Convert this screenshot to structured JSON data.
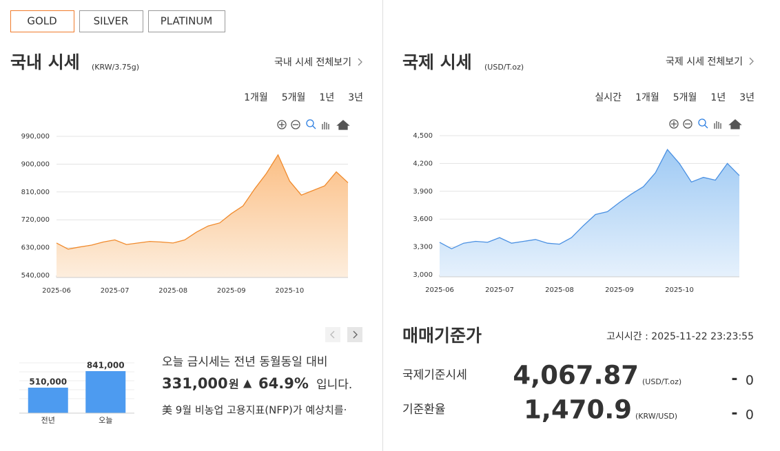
{
  "tabs": [
    "GOLD",
    "SILVER",
    "PLATINUM"
  ],
  "active_tab": 0,
  "domestic": {
    "title": "국내 시세",
    "unit": "(KRW/3.75g)",
    "link": "국내 시세 전체보기",
    "periods": [
      "1개월",
      "5개월",
      "1년",
      "3년"
    ],
    "active_period": 1
  },
  "international": {
    "title": "국제 시세",
    "unit": "(USD/T.oz)",
    "link": "국제 시세 전체보기",
    "periods": [
      "실시간",
      "1개월",
      "5개월",
      "1년",
      "3년"
    ],
    "active_period": 2
  },
  "chart_data": [
    {
      "type": "area",
      "color": "#f08a2c",
      "values": [
        645000,
        625000,
        632000,
        638000,
        648000,
        655000,
        640000,
        645000,
        650000,
        648000,
        645000,
        655000,
        680000,
        700000,
        710000,
        740000,
        765000,
        820000,
        870000,
        930000,
        845000,
        800000,
        815000,
        830000,
        875000,
        840000
      ],
      "xlim": [
        0,
        25
      ],
      "xticks": [
        {
          "value": 0,
          "label": "2025-06"
        },
        {
          "value": 5,
          "label": "2025-07"
        },
        {
          "value": 10,
          "label": "2025-08"
        },
        {
          "value": 15,
          "label": "2025-09"
        },
        {
          "value": 20,
          "label": "2025-10"
        }
      ],
      "ylim": [
        540000,
        990000
      ],
      "yticks": [
        {
          "value": 540000,
          "label": "540,000"
        },
        {
          "value": 630000,
          "label": "630,000"
        },
        {
          "value": 720000,
          "label": "720,000"
        },
        {
          "value": 810000,
          "label": "810,000"
        },
        {
          "value": 900000,
          "label": "900,000"
        },
        {
          "value": 990000,
          "label": "990,000"
        }
      ],
      "grid": true
    },
    {
      "type": "area",
      "color": "#4a90e2",
      "values": [
        3350,
        3280,
        3340,
        3360,
        3350,
        3400,
        3340,
        3360,
        3380,
        3340,
        3330,
        3400,
        3530,
        3650,
        3680,
        3780,
        3870,
        3950,
        4100,
        4350,
        4200,
        4000,
        4050,
        4020,
        4200,
        4070
      ],
      "xlim": [
        0,
        25
      ],
      "xticks": [
        {
          "value": 0,
          "label": "2025-06"
        },
        {
          "value": 5,
          "label": "2025-07"
        },
        {
          "value": 10,
          "label": "2025-08"
        },
        {
          "value": 15,
          "label": "2025-09"
        },
        {
          "value": 20,
          "label": "2025-10"
        }
      ],
      "ylim": [
        3000,
        4500
      ],
      "yticks": [
        {
          "value": 3000,
          "label": "3,000"
        },
        {
          "value": 3300,
          "label": "3,300"
        },
        {
          "value": 3600,
          "label": "3,600"
        },
        {
          "value": 3900,
          "label": "3,900"
        },
        {
          "value": 4200,
          "label": "4,200"
        },
        {
          "value": 4500,
          "label": "4,500"
        }
      ],
      "grid": true
    },
    {
      "type": "bar",
      "color": "#4d9bf0",
      "categories": [
        "전년",
        "오늘"
      ],
      "values": [
        510000,
        841000
      ],
      "value_labels": [
        "510,000",
        "841,000"
      ]
    }
  ],
  "summary": {
    "text": "오늘 금시세는 전년 동월동일 대비",
    "amount": "331,000",
    "currency": "원",
    "arrow": "▲",
    "percent": "64.9%",
    "suffix": "입니다.",
    "news": "美 9월 비농업 고용지표(NFP)가 예상치를·"
  },
  "base_price": {
    "title": "매매기준가",
    "time": "고시시간 : 2025-11-22 23:23:55",
    "rows": [
      {
        "label": "국제기준시세",
        "value": "4,067.87",
        "unit": "(USD/T.oz)",
        "change_sign": "-",
        "change": "0"
      },
      {
        "label": "기준환율",
        "value": "1,470.9",
        "unit": "(KRW/USD)",
        "change_sign": "-",
        "change": "0"
      }
    ]
  }
}
